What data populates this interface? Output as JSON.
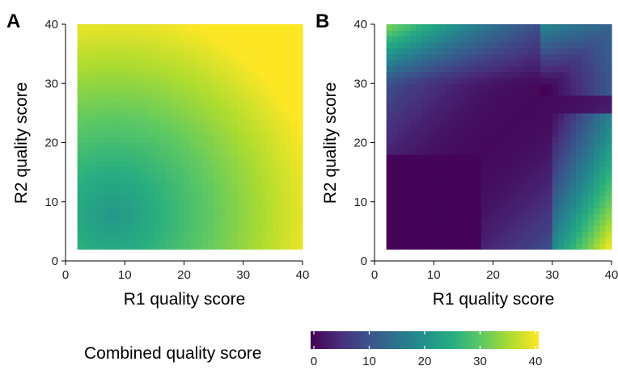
{
  "legend": {
    "title": "Combined quality score",
    "ticks": [
      0,
      10,
      20,
      30,
      40
    ],
    "range": [
      0,
      40
    ]
  },
  "chart_data": [
    {
      "panel": "A",
      "type": "heatmap",
      "title": "",
      "xlabel": "R1 quality score",
      "ylabel": "R2 quality score",
      "xlim": [
        0,
        40
      ],
      "ylim": [
        0,
        40
      ],
      "x_ticks": [
        0,
        10,
        20,
        30,
        40
      ],
      "y_ticks": [
        0,
        10,
        20,
        30,
        40
      ],
      "x_range": [
        2,
        40
      ],
      "y_range": [
        2,
        40
      ],
      "value_range": [
        0,
        40
      ],
      "colormap": "viridis",
      "description_points": [
        {
          "x": 2,
          "y": 2,
          "z": 25
        },
        {
          "x": 8,
          "y": 8,
          "z": 21
        },
        {
          "x": 20,
          "y": 20,
          "z": 30
        },
        {
          "x": 40,
          "y": 2,
          "z": 38
        },
        {
          "x": 2,
          "y": 40,
          "z": 36
        },
        {
          "x": 40,
          "y": 40,
          "z": 39
        }
      ]
    },
    {
      "panel": "B",
      "type": "heatmap",
      "title": "",
      "xlabel": "R1 quality score",
      "ylabel": "R2 quality score",
      "xlim": [
        0,
        40
      ],
      "ylim": [
        0,
        40
      ],
      "x_ticks": [
        0,
        10,
        20,
        30,
        40
      ],
      "y_ticks": [
        0,
        10,
        20,
        30,
        40
      ],
      "x_range": [
        2,
        40
      ],
      "y_range": [
        2,
        40
      ],
      "value_range": [
        0,
        40
      ],
      "colormap": "viridis",
      "description_points": [
        {
          "x": 2,
          "y": 2,
          "z": 0
        },
        {
          "x": 10,
          "y": 10,
          "z": 1
        },
        {
          "x": 20,
          "y": 20,
          "z": 4
        },
        {
          "x": 30,
          "y": 30,
          "z": 5
        },
        {
          "x": 40,
          "y": 2,
          "z": 40
        },
        {
          "x": 2,
          "y": 40,
          "z": 36
        },
        {
          "x": 40,
          "y": 40,
          "z": 14
        }
      ]
    }
  ]
}
